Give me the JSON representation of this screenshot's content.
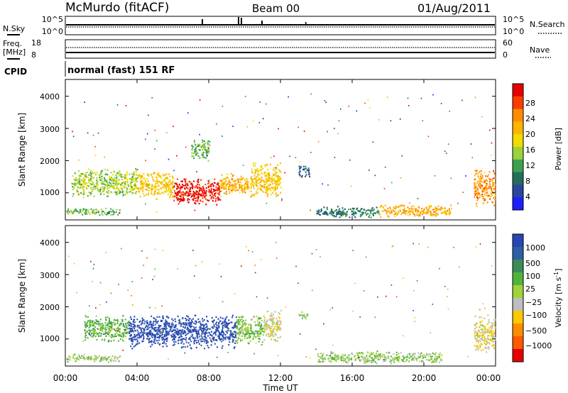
{
  "header": {
    "station": "McMurdo (fitACF)",
    "beam": "Beam 00",
    "date": "01/Aug/2011"
  },
  "noise_panel": {
    "left_label": "N.Sky",
    "right_label": "N.Search",
    "left_ticks": [
      "10^5",
      "10^0"
    ],
    "right_ticks": [
      "10^5",
      "10^0"
    ]
  },
  "freq_panel": {
    "left_label_line1": "Freq.",
    "left_label_line2": "[MHz]",
    "right_label": "Nave",
    "left_ticks": [
      "18",
      "8"
    ],
    "right_ticks": [
      "60",
      "0"
    ]
  },
  "cpid_panel": {
    "label": "CPID",
    "text": "normal (fast) 151 RF"
  },
  "axes": {
    "ylabel": "Slant Range [km]",
    "xlabel": "Time UT",
    "y_ticks": [
      "1000",
      "2000",
      "3000",
      "4000"
    ],
    "x_ticks": [
      "00:00",
      "04:00",
      "08:00",
      "12:00",
      "16:00",
      "20:00",
      "00:00"
    ]
  },
  "power_colorbar": {
    "label": "Power [dB]",
    "ticks": [
      "28",
      "24",
      "20",
      "16",
      "12",
      "8",
      "4"
    ],
    "colors": [
      "#e60000",
      "#ff3c00",
      "#ff8c00",
      "#ffb400",
      "#f0dc00",
      "#9bd23c",
      "#3ca050",
      "#236e5a",
      "#2846a0",
      "#1e1eff"
    ]
  },
  "velocity_colorbar": {
    "label": "Velocity [m s",
    "label_sup": "-1",
    "label_end": "]",
    "ticks": [
      "1000",
      "500",
      "100",
      "25",
      "−25",
      "−100",
      "−500",
      "−1000"
    ],
    "colors": [
      "#2846b4",
      "#2d5fa5",
      "#3c8c5a",
      "#50b43c",
      "#a0d23c",
      "#bebebe",
      "#ffc800",
      "#ff8c00",
      "#ff5a00",
      "#e60000"
    ]
  },
  "chart_data": [
    {
      "type": "heatmap",
      "title": "Power",
      "xlabel": "Time UT",
      "ylabel": "Slant Range [km]",
      "x_range_hours": [
        0,
        24
      ],
      "ylim": [
        180,
        4500
      ],
      "colorbar_label": "Power [dB]",
      "scale_range": [
        0,
        30
      ],
      "regions": [
        {
          "t": [
            0.3,
            4.0
          ],
          "r": [
            850,
            1800
          ],
          "level": 14
        },
        {
          "t": [
            4.0,
            6.0
          ],
          "r": [
            800,
            1700
          ],
          "level": 18
        },
        {
          "t": [
            6.0,
            8.6
          ],
          "r": [
            600,
            1500
          ],
          "level": 28
        },
        {
          "t": [
            7.0,
            8.0
          ],
          "r": [
            2000,
            2700
          ],
          "level": 12
        },
        {
          "t": [
            8.6,
            10.2
          ],
          "r": [
            900,
            1650
          ],
          "level": 20
        },
        {
          "t": [
            10.3,
            12.0
          ],
          "r": [
            800,
            2000
          ],
          "level": 18
        },
        {
          "t": [
            13.0,
            13.6
          ],
          "r": [
            1500,
            1900
          ],
          "level": 6
        },
        {
          "t": [
            0.0,
            3.0
          ],
          "r": [
            300,
            550
          ],
          "level": 12
        },
        {
          "t": [
            14.0,
            17.5
          ],
          "r": [
            250,
            600
          ],
          "level": 8
        },
        {
          "t": [
            17.5,
            21.5
          ],
          "r": [
            250,
            650
          ],
          "level": 20
        },
        {
          "t": [
            22.8,
            24.0
          ],
          "r": [
            600,
            1800
          ],
          "level": 22
        }
      ]
    },
    {
      "type": "heatmap",
      "title": "Velocity",
      "xlabel": "Time UT",
      "ylabel": "Slant Range [km]",
      "x_range_hours": [
        0,
        24
      ],
      "ylim": [
        180,
        4500
      ],
      "colorbar_label": "Velocity [m s-1]",
      "scale_range": [
        -1000,
        1000
      ],
      "regions": [
        {
          "t": [
            1.0,
            3.5
          ],
          "r": [
            900,
            1800
          ],
          "level": 300
        },
        {
          "t": [
            3.5,
            9.5
          ],
          "r": [
            700,
            1800
          ],
          "level": 900
        },
        {
          "t": [
            9.5,
            11.0
          ],
          "r": [
            800,
            1800
          ],
          "level": 200
        },
        {
          "t": [
            11.0,
            12.0
          ],
          "r": [
            900,
            2000
          ],
          "level": -100
        },
        {
          "t": [
            13.0,
            13.5
          ],
          "r": [
            1600,
            1900
          ],
          "level": 50
        },
        {
          "t": [
            0.0,
            3.0
          ],
          "r": [
            300,
            550
          ],
          "level": 100
        },
        {
          "t": [
            14.0,
            21.0
          ],
          "r": [
            250,
            650
          ],
          "level": 100
        },
        {
          "t": [
            22.8,
            24.0
          ],
          "r": [
            600,
            1800
          ],
          "level": -150
        }
      ]
    }
  ]
}
